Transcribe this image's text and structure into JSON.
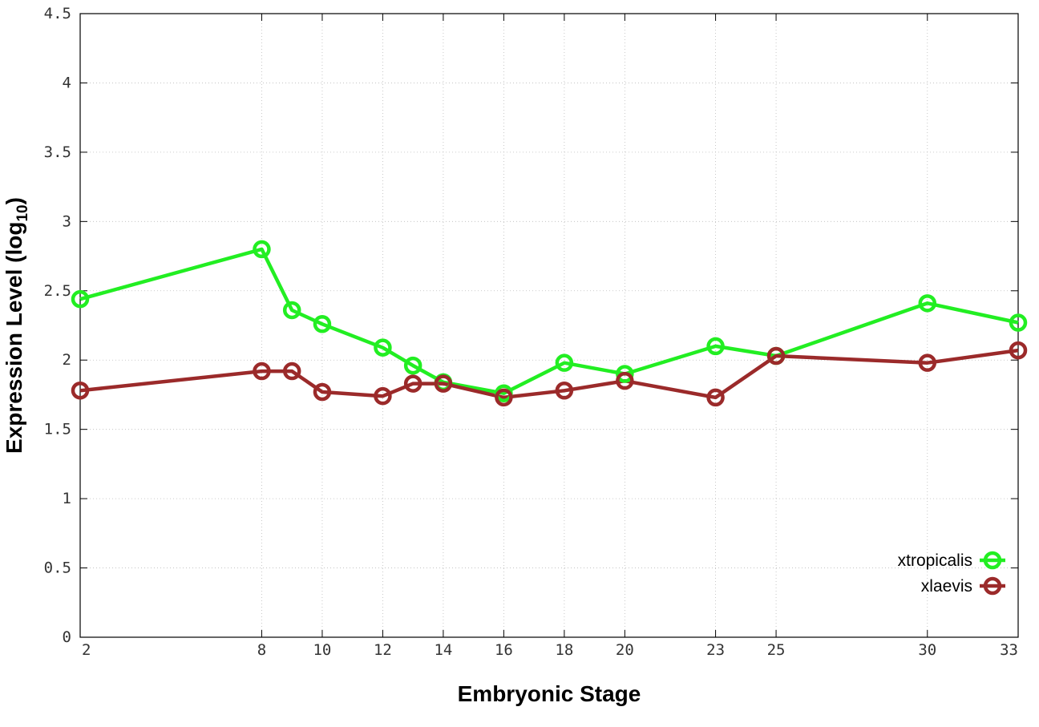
{
  "chart_data": {
    "type": "line",
    "title": "",
    "xlabel": "Embryonic Stage",
    "ylabel_main": "Expression Level (log",
    "ylabel_sub": "10",
    "ylabel_close": ")",
    "x": [
      2,
      8,
      9,
      10,
      12,
      13,
      14,
      16,
      18,
      20,
      23,
      25,
      30,
      33
    ],
    "x_ticks": [
      2,
      8,
      10,
      12,
      14,
      16,
      18,
      20,
      23,
      25,
      30,
      33
    ],
    "y_ticks": [
      "0",
      "0.5",
      "1",
      "1.5",
      "2",
      "2.5",
      "3",
      "3.5",
      "4",
      "4.5"
    ],
    "xlim": [
      2,
      33
    ],
    "ylim": [
      0,
      4.5
    ],
    "grid": true,
    "legend_position": "bottom-right",
    "series": [
      {
        "name": "xtropicalis",
        "color": "#22ee22",
        "values": [
          2.44,
          2.8,
          2.36,
          2.26,
          2.09,
          1.96,
          1.84,
          1.76,
          1.98,
          1.9,
          2.1,
          2.03,
          2.41,
          2.27
        ]
      },
      {
        "name": "xlaevis",
        "color": "#9b2a2a",
        "values": [
          1.78,
          1.92,
          1.92,
          1.77,
          1.74,
          1.83,
          1.83,
          1.73,
          1.78,
          1.85,
          1.73,
          2.03,
          1.98,
          2.07
        ]
      }
    ]
  }
}
